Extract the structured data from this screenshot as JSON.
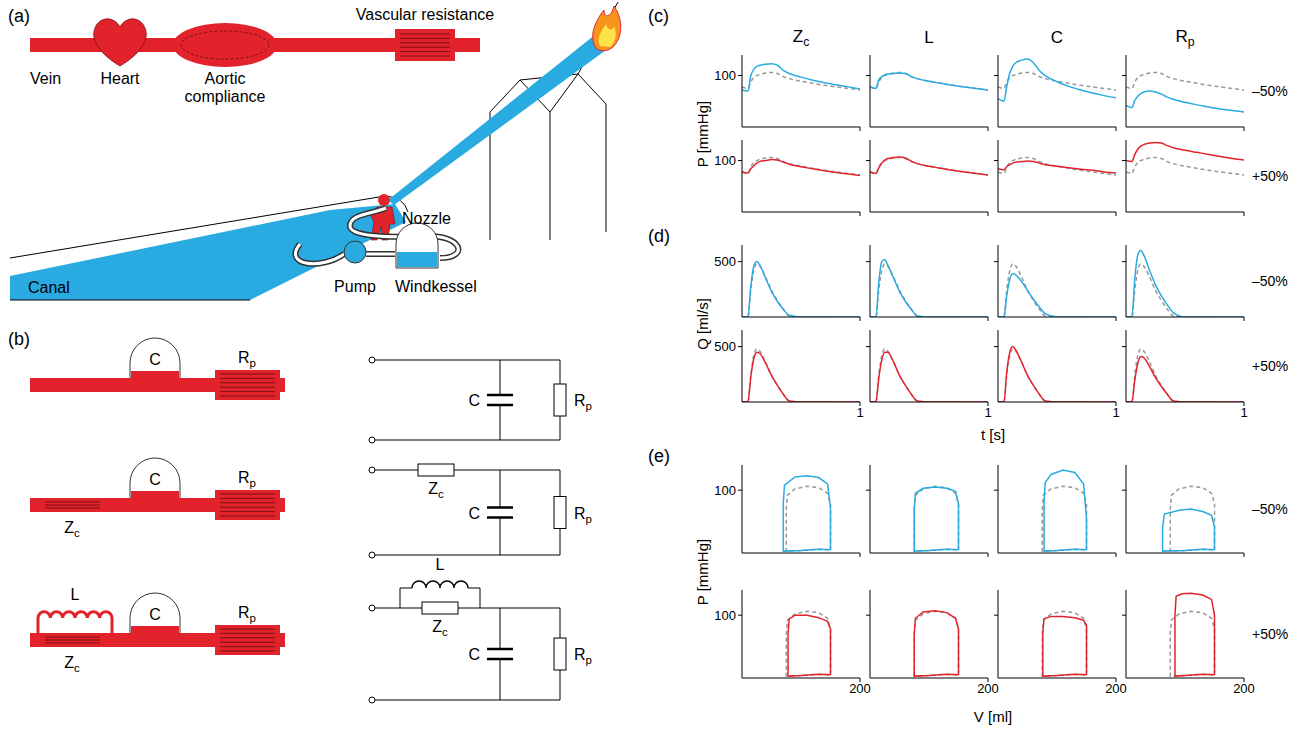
{
  "panel_a": {
    "label": "(a)",
    "labels": {
      "resistance": "Vascular resistance",
      "vein": "Vein",
      "heart": "Heart",
      "compliance": "Aortic compliance",
      "canal": "Canal",
      "nozzle": "Nozzle",
      "pump": "Pump",
      "windkessel": "Windkessel"
    }
  },
  "panel_b": {
    "label": "(b)",
    "models": [
      {
        "compliance": "C",
        "resistance": "Rp"
      },
      {
        "characteristic_impedance": "Zc",
        "compliance": "C",
        "resistance": "Rp"
      },
      {
        "inertance": "L",
        "characteristic_impedance": "Zc",
        "compliance": "C",
        "resistance": "Rp"
      }
    ]
  },
  "chart_data": {
    "type": "line",
    "panel_labels": [
      "(c)",
      "(d)",
      "(e)"
    ],
    "columns": [
      "Zc",
      "L",
      "C",
      "Rp"
    ],
    "series": [
      {
        "name": "–50%",
        "color": "#29abe2",
        "line_style": "solid"
      },
      {
        "name": "+50%",
        "color": "#e3232b",
        "line_style": "solid"
      }
    ],
    "reference": {
      "color": "#999999",
      "line_style": "dashed"
    },
    "time": {
      "xlabel": "t [s]",
      "xlim": [
        0,
        1
      ],
      "xticks": [
        1
      ],
      "x": [
        0,
        0.05,
        0.075,
        0.1,
        0.125,
        0.15,
        0.2,
        0.25,
        0.3,
        0.35,
        0.4,
        0.5,
        0.6,
        0.7,
        0.8,
        0.9,
        1
      ]
    },
    "pressure": {
      "ylabel": "P [mmHg]",
      "ylim": [
        0,
        140
      ],
      "yticks": [
        100
      ],
      "baseline": [
        78,
        75,
        88,
        96,
        100,
        102,
        105,
        106,
        104,
        98,
        94,
        89,
        85,
        81,
        78,
        75,
        72
      ],
      "values": [
        [
          [
            72,
            70,
            100,
            112,
            118,
            120,
            122,
            123,
            120,
            110,
            104,
            97,
            91,
            86,
            82,
            78,
            74
          ],
          [
            78,
            75,
            92,
            98,
            101,
            103,
            104,
            105,
            104,
            98,
            94,
            89,
            85,
            81,
            78,
            75,
            72
          ],
          [
            55,
            50,
            80,
            105,
            118,
            125,
            130,
            132,
            125,
            110,
            100,
            88,
            79,
            72,
            66,
            61,
            57
          ],
          [
            42,
            38,
            52,
            60,
            65,
            68,
            70,
            68,
            64,
            58,
            54,
            48,
            43,
            39,
            35,
            32,
            29
          ]
        ],
        [
          [
            78,
            76,
            84,
            90,
            95,
            98,
            100,
            102,
            101,
            97,
            93,
            88,
            84,
            80,
            77,
            74,
            71
          ],
          [
            78,
            75,
            86,
            95,
            101,
            104,
            106,
            107,
            105,
            99,
            94,
            89,
            85,
            81,
            78,
            75,
            72
          ],
          [
            84,
            82,
            88,
            92,
            95,
            97,
            98,
            99,
            98,
            95,
            92,
            89,
            86,
            83,
            81,
            78,
            76
          ],
          [
            100,
            98,
            112,
            122,
            128,
            131,
            134,
            135,
            134,
            129,
            125,
            120,
            116,
            112,
            108,
            104,
            101
          ]
        ]
      ]
    },
    "flow": {
      "ylabel": "Q [ml/s]",
      "ylim": [
        0,
        650
      ],
      "yticks": [
        500
      ],
      "baseline": [
        0,
        0,
        250,
        420,
        480,
        460,
        360,
        240,
        150,
        70,
        10,
        0,
        0,
        0,
        0,
        0,
        0
      ],
      "values": [
        [
          [
            0,
            0,
            280,
            460,
            500,
            470,
            350,
            230,
            140,
            70,
            15,
            0,
            0,
            0,
            0,
            0,
            0
          ],
          [
            0,
            0,
            320,
            500,
            520,
            470,
            350,
            230,
            140,
            70,
            10,
            0,
            0,
            0,
            0,
            0,
            0
          ],
          [
            0,
            0,
            200,
            340,
            390,
            380,
            320,
            240,
            160,
            90,
            30,
            0,
            0,
            0,
            0,
            0,
            0
          ],
          [
            0,
            0,
            350,
            560,
            600,
            560,
            420,
            290,
            190,
            110,
            40,
            0,
            0,
            0,
            0,
            0,
            0
          ]
        ],
        [
          [
            0,
            0,
            230,
            390,
            450,
            440,
            350,
            240,
            150,
            70,
            10,
            0,
            0,
            0,
            0,
            0,
            0
          ],
          [
            0,
            0,
            220,
            380,
            450,
            450,
            360,
            240,
            150,
            70,
            10,
            0,
            0,
            0,
            0,
            0,
            0
          ],
          [
            0,
            0,
            280,
            450,
            500,
            470,
            360,
            240,
            150,
            70,
            10,
            0,
            0,
            0,
            0,
            0,
            0
          ],
          [
            0,
            0,
            200,
            350,
            410,
            400,
            320,
            220,
            140,
            70,
            10,
            0,
            0,
            0,
            0,
            0,
            0
          ]
        ]
      ]
    },
    "pv_loops": {
      "xlabel": "V [ml]",
      "ylabel": "P [mmHg]",
      "xlim": [
        0,
        200
      ],
      "xticks": [
        200
      ],
      "ylim": [
        0,
        140
      ],
      "yticks": [
        100
      ],
      "baseline": {
        "V": [
          150,
          150,
          145,
          130,
          110,
          90,
          77,
          75,
          75,
          100,
          130,
          150
        ],
        "P": [
          5,
          78,
          95,
          104,
          106,
          102,
          92,
          70,
          3,
          4,
          6,
          5
        ]
      },
      "values": [
        [
          {
            "V": [
              150,
              150,
              145,
              130,
              110,
              90,
              72,
              70,
              70,
              100,
              130,
              150
            ],
            "P": [
              5,
              72,
              110,
              120,
              123,
              121,
              108,
              80,
              3,
              4,
              6,
              5
            ]
          },
          {
            "V": [
              150,
              150,
              145,
              130,
              110,
              90,
              77,
              75,
              75,
              100,
              130,
              150
            ],
            "P": [
              5,
              78,
              98,
              103,
              105,
              103,
              95,
              70,
              3,
              4,
              6,
              5
            ]
          },
          {
            "V": [
              150,
              150,
              145,
              130,
              110,
              90,
              80,
              78,
              78,
              100,
              130,
              150
            ],
            "P": [
              5,
              55,
              110,
              128,
              132,
              125,
              112,
              80,
              3,
              4,
              6,
              5
            ]
          },
          {
            "V": [
              150,
              150,
              145,
              130,
              110,
              90,
              65,
              62,
              62,
              100,
              130,
              150
            ],
            "P": [
              5,
              42,
              60,
              66,
              70,
              68,
              62,
              40,
              3,
              4,
              6,
              5
            ]
          }
        ],
        [
          {
            "V": [
              150,
              150,
              145,
              130,
              110,
              90,
              80,
              78,
              78,
              100,
              130,
              150
            ],
            "P": [
              5,
              78,
              90,
              96,
              100,
              100,
              94,
              70,
              3,
              4,
              6,
              5
            ]
          },
          {
            "V": [
              150,
              150,
              145,
              130,
              110,
              90,
              77,
              75,
              75,
              100,
              130,
              150
            ],
            "P": [
              5,
              78,
              95,
              104,
              107,
              105,
              95,
              70,
              3,
              4,
              6,
              5
            ]
          },
          {
            "V": [
              150,
              150,
              145,
              130,
              110,
              90,
              78,
              76,
              76,
              100,
              130,
              150
            ],
            "P": [
              5,
              84,
              92,
              96,
              98,
              98,
              94,
              72,
              3,
              4,
              6,
              5
            ]
          },
          {
            "V": [
              150,
              150,
              145,
              130,
              110,
              95,
              85,
              83,
              83,
              100,
              130,
              150
            ],
            "P": [
              5,
              100,
              125,
              132,
              135,
              134,
              130,
              100,
              3,
              4,
              6,
              5
            ]
          }
        ]
      ]
    }
  }
}
